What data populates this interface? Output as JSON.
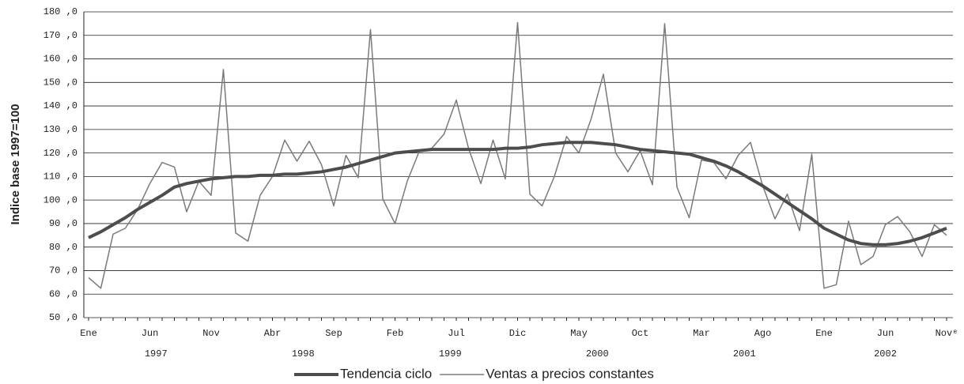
{
  "chart_data": {
    "type": "line",
    "y_label": "Indice base 1997=100",
    "categories": [
      "Ene",
      null,
      null,
      null,
      null,
      "Jun",
      null,
      null,
      null,
      null,
      "Nov",
      null,
      null,
      null,
      null,
      "Abr",
      null,
      null,
      null,
      null,
      "Sep",
      null,
      null,
      null,
      null,
      "Feb",
      null,
      null,
      null,
      null,
      "Jul",
      null,
      null,
      null,
      null,
      "Dic",
      null,
      null,
      null,
      null,
      "May",
      null,
      null,
      null,
      null,
      "Oct",
      null,
      null,
      null,
      null,
      "Mar",
      null,
      null,
      null,
      null,
      "Ago",
      null,
      null,
      null,
      null,
      "Ene",
      null,
      null,
      null,
      null,
      "Jun",
      null,
      null,
      null,
      null,
      "Novᵉ"
    ],
    "year_labels": [
      "1997",
      "1998",
      "1999",
      "2000",
      "2001",
      "2002"
    ],
    "series": [
      {
        "name": "Tendencia ciclo",
        "color": "#4d4d4d",
        "width": 4,
        "values": [
          84,
          86.5,
          89.5,
          92.5,
          96,
          99,
          102,
          105.5,
          107,
          108,
          109,
          109.5,
          110,
          110,
          110.5,
          110.5,
          111,
          111,
          111.5,
          112,
          113,
          114,
          115.5,
          117,
          118.5,
          120,
          120.5,
          121,
          121.5,
          121.5,
          121.5,
          121.5,
          121.5,
          121.5,
          122,
          122,
          122.5,
          123.5,
          124,
          124.5,
          124.5,
          124.5,
          124,
          123.5,
          122.5,
          121.5,
          121,
          120.5,
          120,
          119.5,
          118,
          116.5,
          114.5,
          112,
          109,
          106,
          102.5,
          99,
          95.5,
          92,
          88,
          85.5,
          83,
          81.5,
          81,
          81,
          81.5,
          82.5,
          84,
          86,
          88
        ]
      },
      {
        "name": "Ventas a precios constantes",
        "color": "#7a7a7a",
        "width": 1.5,
        "values": [
          67,
          62.5,
          85.5,
          88,
          96,
          107,
          116,
          114,
          95,
          108,
          102,
          155.5,
          86,
          82.5,
          102,
          110,
          125.5,
          116.5,
          125,
          115,
          97.5,
          119,
          109.5,
          172.5,
          100.5,
          90,
          108,
          121,
          122,
          128,
          142.5,
          122,
          107,
          125.5,
          109,
          175.5,
          102.5,
          97.5,
          110,
          127,
          120,
          134.5,
          153.5,
          120,
          112,
          121,
          106.5,
          175,
          105.5,
          92.5,
          117,
          116,
          109,
          119,
          124.5,
          106,
          92,
          102.5,
          87,
          119.5,
          62.5,
          64,
          91,
          72.5,
          76,
          89.5,
          93,
          86.5,
          76,
          89.5,
          85
        ]
      }
    ],
    "ylim": [
      50,
      180
    ],
    "yticks": [
      {
        "value": 50,
        "label": "50 ,0"
      },
      {
        "value": 60,
        "label": "60 ,0"
      },
      {
        "value": 70,
        "label": "70 ,0"
      },
      {
        "value": 80,
        "label": "80 ,0"
      },
      {
        "value": 90,
        "label": "90 ,0"
      },
      {
        "value": 100,
        "label": "100 ,0"
      },
      {
        "value": 110,
        "label": "110 ,0"
      },
      {
        "value": 120,
        "label": "120 ,0"
      },
      {
        "value": 130,
        "label": "130 ,0"
      },
      {
        "value": 140,
        "label": "140 ,0"
      },
      {
        "value": 150,
        "label": "150 ,0"
      },
      {
        "value": 160,
        "label": "160 ,0"
      },
      {
        "value": 170,
        "label": "170 ,0"
      },
      {
        "value": 180,
        "label": "180 ,0"
      }
    ],
    "grid": true
  }
}
